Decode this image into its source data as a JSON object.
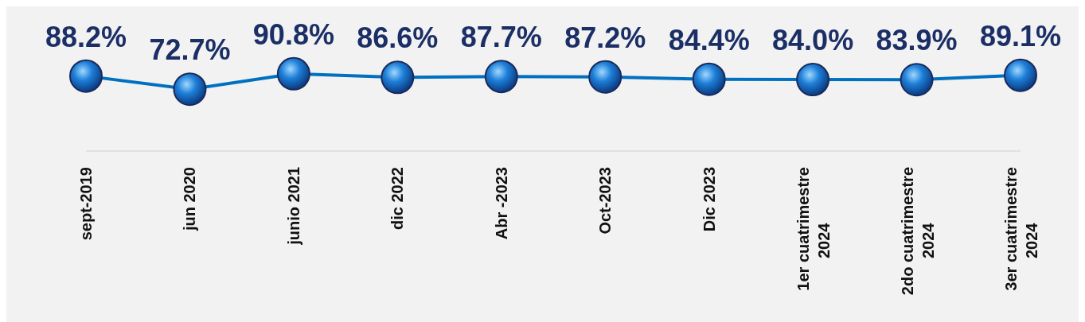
{
  "chart_data": {
    "type": "line",
    "categories": [
      "sept-2019",
      "jun 2020",
      "junio 2021",
      "dic 2022",
      "Abr -2023",
      "Oct-2023",
      "Dic 2023",
      "1er cuatrimestre 2024",
      "2do cuatrimestre 2024",
      "3er cuatrimestre 2024"
    ],
    "series": [
      {
        "color": "#0070c0",
        "values": [
          88.2,
          72.7,
          90.8,
          86.6,
          87.7,
          87.2,
          84.4,
          84.0,
          83.9,
          89.1
        ],
        "value_labels": [
          "88.2%",
          "72.7%",
          "90.8%",
          "86.6%",
          "87.7%",
          "87.2%",
          "84.4%",
          "84.0%",
          "83.9%",
          "89.1%"
        ]
      }
    ],
    "marker": "circle",
    "line_style": "solid"
  }
}
